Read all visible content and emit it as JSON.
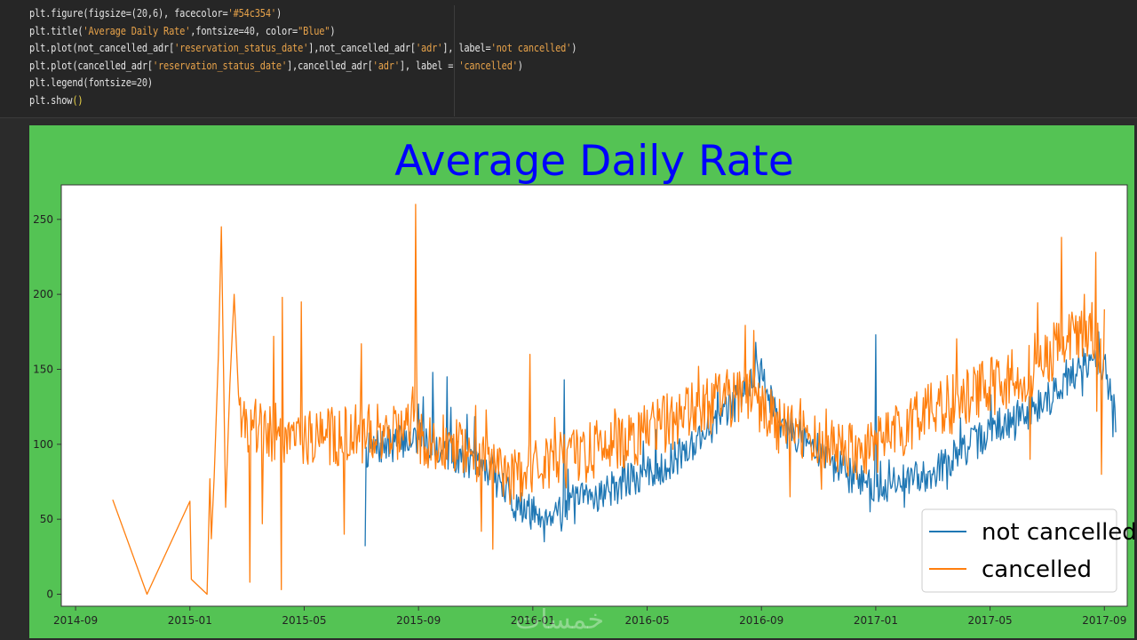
{
  "code_cell": {
    "lines": [
      [
        {
          "t": "plt.figure(figsize=(",
          "c": ""
        },
        {
          "t": "20",
          "c": "num"
        },
        {
          "t": ",",
          "c": ""
        },
        {
          "t": "6",
          "c": "num"
        },
        {
          "t": "), facecolor=",
          "c": ""
        },
        {
          "t": "'#54c354'",
          "c": "str"
        },
        {
          "t": ")",
          "c": ""
        }
      ],
      [
        {
          "t": "plt.title(",
          "c": ""
        },
        {
          "t": "'Average Daily Rate'",
          "c": "str"
        },
        {
          "t": ",fontsize=",
          "c": ""
        },
        {
          "t": "40",
          "c": "num"
        },
        {
          "t": ", color=",
          "c": ""
        },
        {
          "t": "\"Blue\"",
          "c": "str"
        },
        {
          "t": ")",
          "c": ""
        }
      ],
      [
        {
          "t": "plt.plot(not_cancelled_adr[",
          "c": ""
        },
        {
          "t": "'reservation_status_date'",
          "c": "str"
        },
        {
          "t": "],not_cancelled_adr[",
          "c": ""
        },
        {
          "t": "'adr'",
          "c": "str"
        },
        {
          "t": "], label=",
          "c": ""
        },
        {
          "t": "'not cancelled'",
          "c": "str"
        },
        {
          "t": ")",
          "c": ""
        }
      ],
      [
        {
          "t": "plt.plot(cancelled_adr[",
          "c": ""
        },
        {
          "t": "'reservation_status_date'",
          "c": "str"
        },
        {
          "t": "],cancelled_adr[",
          "c": ""
        },
        {
          "t": "'adr'",
          "c": "str"
        },
        {
          "t": "], label = ",
          "c": ""
        },
        {
          "t": "'cancelled'",
          "c": "str"
        },
        {
          "t": ")",
          "c": ""
        }
      ],
      [
        {
          "t": "plt.legend(fontsize=",
          "c": ""
        },
        {
          "t": "20",
          "c": "num"
        },
        {
          "t": ")",
          "c": ""
        }
      ],
      [
        {
          "t": "plt.show",
          "c": ""
        },
        {
          "t": "()",
          "c": "br"
        }
      ]
    ]
  },
  "colors": {
    "facecolor": "#54c354",
    "title": "#0000ff",
    "not_cancelled": "#1f77b4",
    "cancelled": "#ff7f0e"
  },
  "chart_data": {
    "type": "line",
    "title": "Average Daily Rate",
    "xlabel": "",
    "ylabel": "",
    "x_ticks": [
      "2014-09",
      "2015-01",
      "2015-05",
      "2015-09",
      "2016-01",
      "2016-05",
      "2016-09",
      "2017-01",
      "2017-05",
      "2017-09"
    ],
    "x_tick_months": [
      0,
      4,
      8,
      12,
      16,
      20,
      24,
      28,
      32,
      36
    ],
    "xlim_months": [
      -0.5,
      36.8
    ],
    "y_ticks": [
      0,
      50,
      100,
      150,
      200,
      250
    ],
    "ylim": [
      -8,
      273
    ],
    "legend": {
      "location": "lower-right",
      "entries": [
        "not cancelled",
        "cancelled"
      ]
    },
    "watermark": "خمسات",
    "series": [
      {
        "name": "not cancelled",
        "color": "#1f77b4",
        "x_start": 10.1,
        "x_end": 36.4,
        "points_per_month": 30,
        "trend": [
          [
            10.1,
            95
          ],
          [
            12,
            105
          ],
          [
            13,
            95
          ],
          [
            14.5,
            82
          ],
          [
            15.5,
            58
          ],
          [
            16.3,
            52
          ],
          [
            17,
            58
          ],
          [
            18,
            65
          ],
          [
            19,
            72
          ],
          [
            20,
            80
          ],
          [
            21,
            90
          ],
          [
            22,
            108
          ],
          [
            23,
            125
          ],
          [
            23.8,
            150
          ],
          [
            24,
            140
          ],
          [
            25,
            110
          ],
          [
            26,
            95
          ],
          [
            27,
            80
          ],
          [
            28,
            72
          ],
          [
            29,
            75
          ],
          [
            30,
            82
          ],
          [
            31,
            95
          ],
          [
            32,
            108
          ],
          [
            33,
            118
          ],
          [
            34,
            130
          ],
          [
            35,
            148
          ],
          [
            35.7,
            158
          ],
          [
            36.1,
            150
          ],
          [
            36.4,
            118
          ]
        ],
        "amplitude": 12,
        "seed": 7,
        "spikes": [
          [
            10.1,
            32
          ],
          [
            10.3,
            100
          ],
          [
            12.5,
            148
          ],
          [
            13.7,
            120
          ],
          [
            13.0,
            145
          ],
          [
            16.4,
            35
          ],
          [
            17.1,
            143
          ],
          [
            23.8,
            168
          ],
          [
            24.1,
            150
          ],
          [
            28.0,
            173
          ],
          [
            27.8,
            55
          ],
          [
            29.0,
            58
          ],
          [
            30.5,
            70
          ],
          [
            35.8,
            175
          ],
          [
            36.15,
            130
          ],
          [
            36.3,
            105
          ],
          [
            36.4,
            108
          ]
        ]
      },
      {
        "name": "cancelled",
        "color": "#ff7f0e",
        "x_start": 1.3,
        "x_end": 36.0,
        "points_per_month": 30,
        "fixed_points": [
          [
            1.3,
            63
          ],
          [
            2.5,
            0
          ],
          [
            4.0,
            62
          ],
          [
            4.05,
            10
          ],
          [
            4.6,
            0
          ],
          [
            4.7,
            77
          ],
          [
            4.75,
            37
          ],
          [
            4.85,
            78
          ],
          [
            5.0,
            160
          ],
          [
            5.1,
            245
          ],
          [
            5.25,
            58
          ],
          [
            5.4,
            140
          ],
          [
            5.55,
            200
          ],
          [
            5.7,
            133
          ]
        ],
        "trend": [
          [
            5.7,
            110
          ],
          [
            7,
            108
          ],
          [
            9,
            105
          ],
          [
            11,
            110
          ],
          [
            12.5,
            103
          ],
          [
            13.5,
            100
          ],
          [
            14.5,
            90
          ],
          [
            15.5,
            80
          ],
          [
            16.5,
            85
          ],
          [
            18,
            95
          ],
          [
            20,
            108
          ],
          [
            22,
            125
          ],
          [
            23.5,
            135
          ],
          [
            24.5,
            115
          ],
          [
            26,
            100
          ],
          [
            27,
            95
          ],
          [
            28,
            100
          ],
          [
            29,
            110
          ],
          [
            30,
            122
          ],
          [
            31.5,
            135
          ],
          [
            33,
            145
          ],
          [
            34.5,
            165
          ],
          [
            35.5,
            178
          ],
          [
            36.0,
            160
          ]
        ],
        "amplitude": 20,
        "seed": 19,
        "spikes": [
          [
            6.1,
            8
          ],
          [
            6.3,
            130
          ],
          [
            6.55,
            47
          ],
          [
            6.95,
            172
          ],
          [
            7.2,
            3
          ],
          [
            7.25,
            198
          ],
          [
            7.9,
            195
          ],
          [
            9.4,
            40
          ],
          [
            10.0,
            167
          ],
          [
            11.9,
            260
          ],
          [
            12.1,
            120
          ],
          [
            14.2,
            42
          ],
          [
            14.6,
            30
          ],
          [
            15.2,
            60
          ],
          [
            15.9,
            160
          ],
          [
            21.8,
            152
          ],
          [
            25.0,
            65
          ],
          [
            26.1,
            70
          ],
          [
            33.4,
            90
          ],
          [
            34.5,
            238
          ],
          [
            35.3,
            200
          ],
          [
            35.7,
            228
          ],
          [
            35.75,
            122
          ],
          [
            35.9,
            80
          ],
          [
            36.0,
            190
          ]
        ]
      }
    ]
  }
}
